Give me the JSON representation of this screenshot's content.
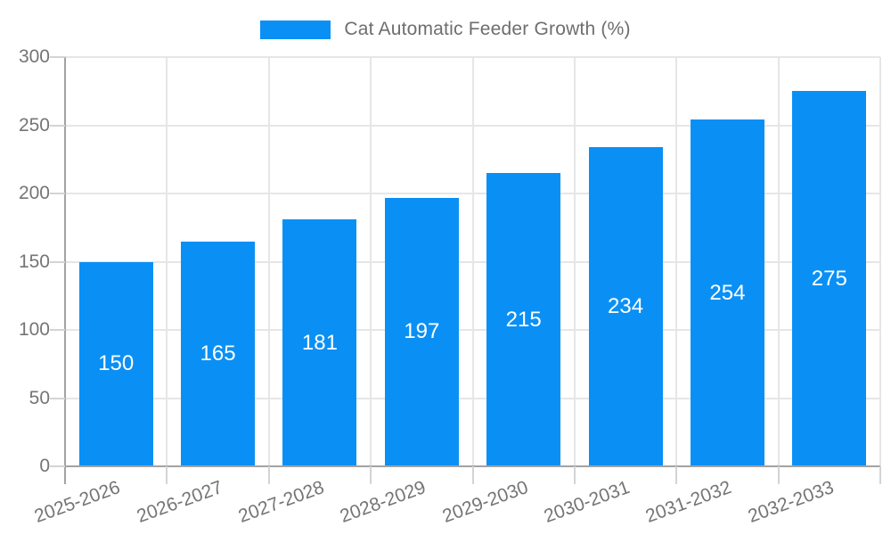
{
  "chart_data": {
    "type": "bar",
    "title": "Cat Automatic Feeder Growth (%)",
    "categories": [
      "2025-2026",
      "2026-2027",
      "2027-2028",
      "2028-2029",
      "2029-2030",
      "2030-2031",
      "2031-2032",
      "2032-2033"
    ],
    "values": [
      150,
      165,
      181,
      197,
      215,
      234,
      254,
      275
    ],
    "xlabel": "",
    "ylabel": "",
    "ylim": [
      0,
      300
    ],
    "yticks": [
      0,
      50,
      100,
      150,
      200,
      250,
      300
    ],
    "grid": true,
    "legend_position": "top-center",
    "bar_value_labels": [
      "150",
      "165",
      "181",
      "197",
      "215",
      "234",
      "254",
      "275"
    ],
    "colors": {
      "bar": "#0a90f5",
      "bar_value_text": "#ffffff",
      "tick_label": "#757575",
      "legend_text": "#6e6e6e",
      "gridline": "#e6e6e6",
      "axis_line": "#a3a3a3",
      "tick_mark": "#d4d4d4"
    }
  }
}
